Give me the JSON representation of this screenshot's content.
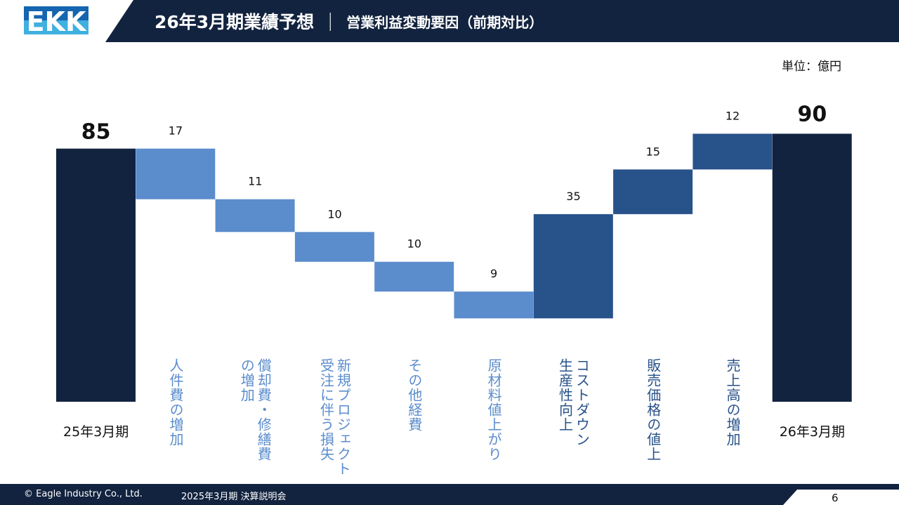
{
  "header": {
    "logo_text": "EKK",
    "title": "26年3月期業績予想",
    "separator": "｜",
    "subtitle": "営業利益変動要因（前期対比）"
  },
  "unit": "単位：億円",
  "colors": {
    "navy": "#12233f",
    "decrease": "#5b8ccc",
    "increase": "#28528a",
    "logo_dark": "#1565b0",
    "logo_light": "#3fb0e0"
  },
  "chart_data": {
    "type": "waterfall",
    "start": {
      "label": "25年3月期",
      "value": 85
    },
    "end": {
      "label": "26年3月期",
      "value": 90
    },
    "steps": [
      {
        "label": "人件費の増加",
        "value": -17
      },
      {
        "label": "償却費・修繕費の増加",
        "value": -11
      },
      {
        "label": "新規プロジェクト受注に伴う損失",
        "value": -10
      },
      {
        "label": "その他経費",
        "value": -10
      },
      {
        "label": "原材料値上がり",
        "value": -9
      },
      {
        "label": "コストダウン生産性向上",
        "value": 35
      },
      {
        "label": "販売価格の値上",
        "value": 15
      },
      {
        "label": "売上高の増加",
        "value": 12
      }
    ],
    "grid": false,
    "legend": "none"
  },
  "category_lines": [
    [
      "人件費の増加"
    ],
    [
      "償却費・修繕費",
      "の増加"
    ],
    [
      "新規プロジェクト",
      "受注に伴う損失"
    ],
    [
      "その他経費"
    ],
    [
      "原材料値上がり"
    ],
    [
      "コストダウン",
      "生産性向上"
    ],
    [
      "販売価格の値上"
    ],
    [
      "売上高の増加"
    ]
  ],
  "footer": {
    "copyright": "© Eagle Industry Co., Ltd.",
    "event": "2025年3月期 決算説明会",
    "page": "6"
  }
}
